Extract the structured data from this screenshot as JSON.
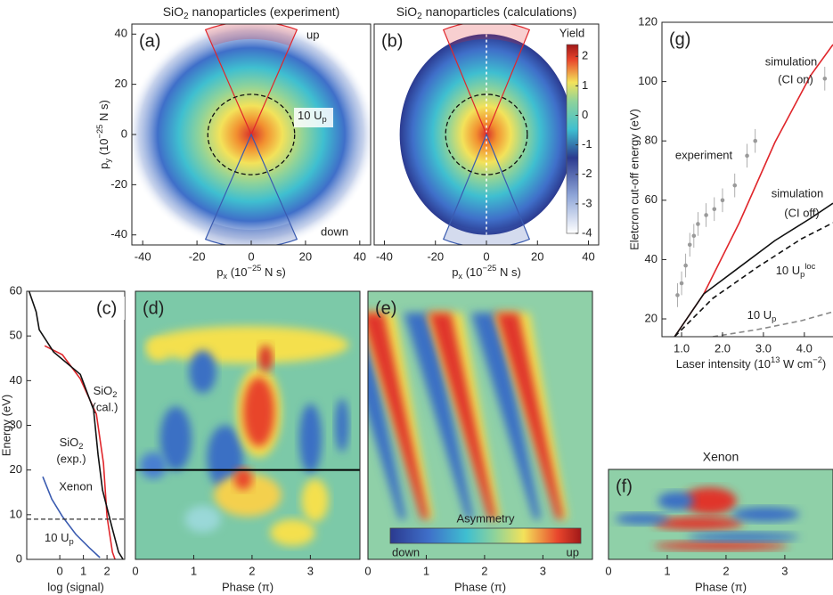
{
  "chart_data": [
    {
      "type": "momentum-map",
      "label": "(a)",
      "title": [
        {
          "text": "SiO"
        },
        {
          "sub": "2"
        },
        {
          "text": " nanoparticles (experiment)"
        }
      ],
      "title_color": "#111111",
      "xlabel": [
        {
          "text": "p"
        },
        {
          "sub": "x"
        },
        {
          "text": " (10"
        },
        {
          "sup": "−25"
        },
        {
          "text": " N s)"
        }
      ],
      "ylabel": [
        {
          "text": "p"
        },
        {
          "sub": "y"
        },
        {
          "text": " (10"
        },
        {
          "sup": "−25"
        },
        {
          "text": " N s)"
        }
      ],
      "xlim": [
        -44,
        44
      ],
      "ylim": [
        -44,
        44
      ],
      "xticks": [
        -40,
        -20,
        0,
        20,
        40
      ],
      "yticks": [
        -40,
        -20,
        0,
        20,
        40
      ],
      "circle_radius": 16,
      "sector_half_angle": 22,
      "sector_radius": [
        38,
        45
      ],
      "up_label": "up",
      "down_label": "down",
      "circle_label": [
        {
          "text": "10 U"
        },
        {
          "sub": "p"
        }
      ]
    },
    {
      "type": "momentum-map",
      "label": "(b)",
      "title": [
        {
          "text": "SiO"
        },
        {
          "sub": "2"
        },
        {
          "text": " nanoparticles (calculations)"
        }
      ],
      "title_color": "#e0262b",
      "xlabel": [
        {
          "text": "p"
        },
        {
          "sub": "x"
        },
        {
          "text": " (10"
        },
        {
          "sup": "−25"
        },
        {
          "text": " N s)"
        }
      ],
      "xlim": [
        -44,
        44
      ],
      "ylim": [
        -44,
        44
      ],
      "xticks": [
        -40,
        -20,
        0,
        20,
        40
      ],
      "circle_radius": 16,
      "sector_half_angle": 22,
      "sector_radius": [
        38,
        45
      ],
      "colorbar": {
        "label": "Yield",
        "lim": [
          -4,
          2.4
        ],
        "ticks": [
          2,
          1,
          0,
          -1,
          -2,
          -3,
          -4
        ]
      }
    },
    {
      "type": "line",
      "label": "(c)",
      "xlabel": "log (signal)",
      "ylabel": "Energy (eV)",
      "xlim": [
        -1.4,
        2.75
      ],
      "ylim": [
        0,
        60
      ],
      "xticks": [
        0,
        1,
        2
      ],
      "yticks": [
        0,
        10,
        20,
        30,
        40,
        50,
        60
      ],
      "series": [
        {
          "name": [
            {
              "text": "SiO"
            },
            {
              "sub": "2"
            }
          ],
          "note": "(cal.)",
          "color": "#e0262b",
          "x": [
            -0.64,
            0.11,
            0.87,
            1.55,
            1.85,
            2.0,
            2.23,
            2.34
          ],
          "y": [
            47.8,
            45.8,
            40.4,
            32.5,
            21.5,
            9.6,
            1.6,
            0
          ]
        },
        {
          "name": [
            {
              "text": "SiO"
            },
            {
              "sub": "2"
            }
          ],
          "note": "(exp.)",
          "color": "#111111",
          "x": [
            -1.3,
            -1.0,
            -0.87,
            -0.26,
            0.87,
            1.43,
            1.62,
            1.81,
            2.19,
            2.49,
            2.68
          ],
          "y": [
            60,
            55.4,
            51.4,
            46.4,
            41.4,
            33.5,
            23.5,
            15.5,
            7.6,
            1.6,
            0
          ]
        },
        {
          "name": "Xenon",
          "color": "#3a5bb0",
          "x": [
            -0.72,
            -0.34,
            0.11,
            0.68,
            1.25,
            1.7
          ],
          "y": [
            18.5,
            13.5,
            9.6,
            5.6,
            2.6,
            0.4
          ]
        }
      ],
      "hline": {
        "value": 9,
        "label": [
          {
            "text": "10 U"
          },
          {
            "sub": "p"
          }
        ]
      }
    },
    {
      "type": "heatmap",
      "label": "(d)",
      "xlabel": "Phase (π)",
      "xlim": [
        0,
        3.85
      ],
      "ylim": [
        0,
        60
      ],
      "xticks": [
        0,
        1,
        2,
        3
      ],
      "hline": 20
    },
    {
      "type": "heatmap",
      "label": "(e)",
      "xlabel": "Phase (π)",
      "xlim": [
        0,
        3.85
      ],
      "ylim": [
        0,
        60
      ],
      "xticks": [
        0,
        1,
        2,
        3
      ],
      "colorbar": {
        "label": "Asymmetry",
        "low": "down",
        "high": "up"
      }
    },
    {
      "type": "heatmap",
      "label": "(f)",
      "title": "Xenon",
      "title_color": "#3a5bb0",
      "xlabel": "Phase (π)",
      "xlim": [
        0,
        3.82
      ],
      "xticks": [
        0,
        1,
        2,
        3
      ]
    },
    {
      "type": "line",
      "label": "(g)",
      "ylabel": "Eletcron cut-off energy (eV)",
      "xlabel": [
        {
          "text": "Laser intensity (10"
        },
        {
          "sup": "13"
        },
        {
          "text": " W cm"
        },
        {
          "sup": "−2"
        },
        {
          "text": ")"
        }
      ],
      "xlim": [
        0.52,
        4.7
      ],
      "ylim": [
        14,
        120
      ],
      "xticks": [
        {
          "value": 1,
          "label": "1.0"
        },
        {
          "value": 2,
          "label": "2.0"
        },
        {
          "value": 3,
          "label": "3.0"
        },
        {
          "value": 4,
          "label": "4.0"
        }
      ],
      "yticks": [
        20,
        40,
        60,
        80,
        100,
        120
      ],
      "series": [
        {
          "name": "simulation",
          "note": "(CI on)",
          "color": "#e0262b",
          "x": [
            0.83,
            1.54,
            2.41,
            3.28,
            4.15,
            4.7
          ],
          "y": [
            14,
            28.4,
            52.4,
            79.5,
            102,
            112.5
          ]
        },
        {
          "name": "simulation",
          "note": "(CI off)",
          "color": "#111111",
          "x": [
            0.83,
            1.54,
            2.41,
            3.28,
            4.15,
            4.7
          ],
          "y": [
            14,
            28.4,
            37.4,
            46.4,
            53.9,
            59
          ]
        },
        {
          "name": [
            {
              "text": "10 U"
            },
            {
              "sub": "p"
            },
            {
              "sup": "loc"
            }
          ],
          "color": "#111111",
          "dashed": true,
          "x": [
            0.83,
            1.76,
            2.85,
            3.93,
            4.7
          ],
          "y": [
            14,
            26.9,
            37.4,
            47,
            52.4
          ]
        },
        {
          "name": [
            {
              "text": "10 U"
            },
            {
              "sub": "p"
            }
          ],
          "color": "#888888",
          "dashed": true,
          "x": [
            1.76,
            2.85,
            3.93,
            4.7
          ],
          "y": [
            14,
            16.4,
            19.4,
            22.4
          ]
        },
        {
          "name": "experiment",
          "color": "#9a9a9a",
          "points": true,
          "x": [
            0.9,
            1.0,
            1.1,
            1.2,
            1.3,
            1.4,
            1.6,
            1.8,
            2.0,
            2.3,
            2.6,
            2.8,
            4.5
          ],
          "y": [
            28,
            32,
            38,
            45,
            48,
            52,
            55,
            57,
            60,
            65,
            75,
            80,
            101
          ],
          "err": [
            4,
            4,
            4,
            4,
            4,
            4,
            4,
            4,
            4,
            4,
            4,
            4,
            4
          ]
        }
      ]
    }
  ]
}
